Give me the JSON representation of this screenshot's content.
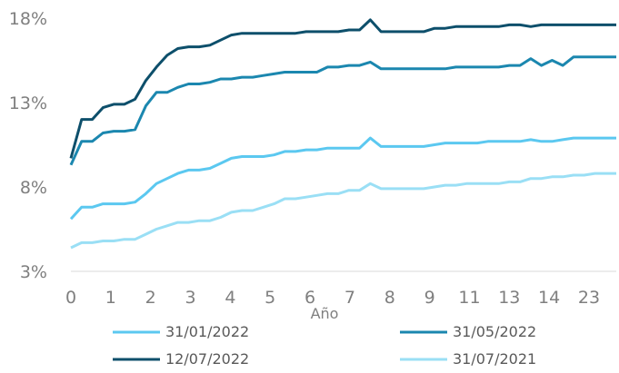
{
  "chart_data": {
    "type": "line",
    "title": "",
    "xlabel": "Año",
    "ylabel": "",
    "x_tick_labels": [
      "0",
      "1",
      "2",
      "3",
      "4",
      "5",
      "6",
      "7",
      "8",
      "9",
      "11",
      "13",
      "14",
      "23"
    ],
    "y_ticks": [
      "3%",
      "8%",
      "13%",
      "18%"
    ],
    "ylim": [
      3,
      18
    ],
    "grid": false,
    "legend": "bottom",
    "series": [
      {
        "name": "31/01/2022",
        "color": "#5BC8F0",
        "values": [
          6.1,
          6.8,
          6.8,
          7.0,
          7.0,
          7.0,
          7.1,
          7.6,
          8.2,
          8.5,
          8.8,
          9.0,
          9.0,
          9.1,
          9.4,
          9.7,
          9.8,
          9.8,
          9.8,
          9.9,
          10.1,
          10.1,
          10.2,
          10.2,
          10.3,
          10.3,
          10.3,
          10.3,
          10.9,
          10.4,
          10.4,
          10.4,
          10.4,
          10.4,
          10.5,
          10.6,
          10.6,
          10.6,
          10.6,
          10.7,
          10.7,
          10.7,
          10.7,
          10.8,
          10.7,
          10.7,
          10.8,
          10.9,
          10.9,
          10.9,
          10.9,
          10.9
        ]
      },
      {
        "name": "31/05/2022",
        "color": "#1B87AF",
        "values": [
          9.3,
          10.7,
          10.7,
          11.2,
          11.3,
          11.3,
          11.4,
          12.8,
          13.6,
          13.6,
          13.9,
          14.1,
          14.1,
          14.2,
          14.4,
          14.4,
          14.5,
          14.5,
          14.6,
          14.7,
          14.8,
          14.8,
          14.8,
          14.8,
          15.1,
          15.1,
          15.2,
          15.2,
          15.4,
          15.0,
          15.0,
          15.0,
          15.0,
          15.0,
          15.0,
          15.0,
          15.1,
          15.1,
          15.1,
          15.1,
          15.1,
          15.2,
          15.2,
          15.6,
          15.2,
          15.5,
          15.2,
          15.7,
          15.7,
          15.7,
          15.7,
          15.7
        ]
      },
      {
        "name": "12/07/2022",
        "color": "#0D4F6B",
        "values": [
          9.7,
          12.0,
          12.0,
          12.7,
          12.9,
          12.9,
          13.2,
          14.3,
          15.1,
          15.8,
          16.2,
          16.3,
          16.3,
          16.4,
          16.7,
          17.0,
          17.1,
          17.1,
          17.1,
          17.1,
          17.1,
          17.1,
          17.2,
          17.2,
          17.2,
          17.2,
          17.3,
          17.3,
          17.9,
          17.2,
          17.2,
          17.2,
          17.2,
          17.2,
          17.4,
          17.4,
          17.5,
          17.5,
          17.5,
          17.5,
          17.5,
          17.6,
          17.6,
          17.5,
          17.6,
          17.6,
          17.6,
          17.6,
          17.6,
          17.6,
          17.6,
          17.6
        ]
      },
      {
        "name": "31/07/2021",
        "color": "#9ADFF5",
        "values": [
          4.4,
          4.7,
          4.7,
          4.8,
          4.8,
          4.9,
          4.9,
          5.2,
          5.5,
          5.7,
          5.9,
          5.9,
          6.0,
          6.0,
          6.2,
          6.5,
          6.6,
          6.6,
          6.8,
          7.0,
          7.3,
          7.3,
          7.4,
          7.5,
          7.6,
          7.6,
          7.8,
          7.8,
          8.2,
          7.9,
          7.9,
          7.9,
          7.9,
          7.9,
          8.0,
          8.1,
          8.1,
          8.2,
          8.2,
          8.2,
          8.2,
          8.3,
          8.3,
          8.5,
          8.5,
          8.6,
          8.6,
          8.7,
          8.7,
          8.8,
          8.8,
          8.8
        ]
      }
    ]
  }
}
